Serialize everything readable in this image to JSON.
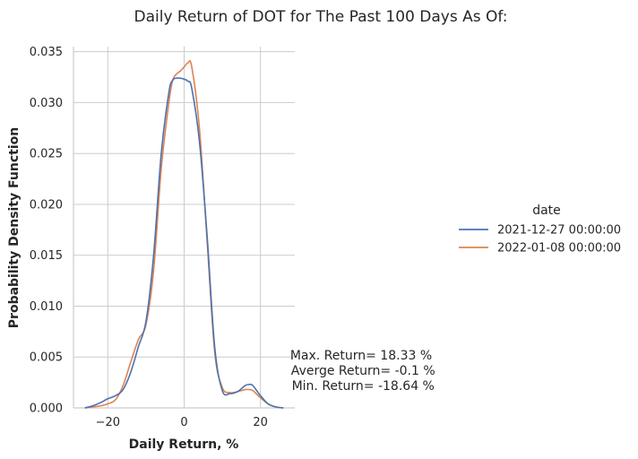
{
  "chart_data": {
    "type": "line",
    "title": "Daily Return of DOT for The Past 100 Days As Of:",
    "xlabel": "Daily Return, %",
    "ylabel": "Probability Density Function",
    "xlim": [
      -29,
      29
    ],
    "ylim": [
      0,
      0.0355
    ],
    "xticks": [
      -20,
      0,
      20
    ],
    "xtick_labels": [
      "−20",
      "0",
      "20"
    ],
    "yticks": [
      0.0,
      0.005,
      0.01,
      0.015,
      0.02,
      0.025,
      0.03,
      0.035
    ],
    "ytick_labels": [
      "0.000",
      "0.005",
      "0.010",
      "0.015",
      "0.020",
      "0.025",
      "0.030",
      "0.035"
    ],
    "grid": true,
    "legend": {
      "title": "date",
      "placement": "right"
    },
    "series": [
      {
        "name": "2021-12-27 00:00:00",
        "color": "#4c72b0",
        "x": [
          -26,
          -24,
          -22,
          -20,
          -18,
          -16,
          -14,
          -12,
          -10,
          -8,
          -6,
          -4,
          -3,
          -2,
          -1,
          0,
          1,
          2,
          4,
          6,
          8,
          10,
          12,
          14,
          16,
          17,
          18,
          20,
          22,
          24,
          26
        ],
        "y": [
          0.0,
          0.0002,
          0.0005,
          0.0009,
          0.0012,
          0.0018,
          0.0035,
          0.006,
          0.0085,
          0.015,
          0.025,
          0.031,
          0.0322,
          0.0324,
          0.0324,
          0.0323,
          0.0321,
          0.0314,
          0.0262,
          0.017,
          0.006,
          0.0017,
          0.0014,
          0.0016,
          0.0022,
          0.0023,
          0.0022,
          0.0012,
          0.0004,
          0.0001,
          0.0
        ]
      },
      {
        "name": "2022-01-08 00:00:00",
        "color": "#dd8452",
        "x": [
          -26,
          -24,
          -22,
          -20,
          -18,
          -16,
          -14,
          -12,
          -10,
          -8,
          -6,
          -4,
          -3,
          -2,
          -1,
          0,
          1,
          2,
          4,
          6,
          8,
          10,
          12,
          14,
          16,
          17,
          18,
          20,
          22,
          24,
          26
        ],
        "y": [
          0.0,
          0.0001,
          0.0002,
          0.0004,
          0.0008,
          0.0022,
          0.0045,
          0.0067,
          0.0082,
          0.0135,
          0.0235,
          0.03,
          0.0322,
          0.0328,
          0.0331,
          0.0335,
          0.0339,
          0.0335,
          0.0275,
          0.0165,
          0.0055,
          0.002,
          0.0015,
          0.0016,
          0.0018,
          0.0018,
          0.0017,
          0.001,
          0.0004,
          0.0001,
          0.0
        ]
      }
    ],
    "annotations": [
      "Max. Return= 18.33 %",
      " Averge Return= -0.1 %",
      " Min. Return= -18.64 %"
    ]
  },
  "colors": {
    "grid": "#cccccc",
    "axis": "#cccccc",
    "text": "#262626"
  }
}
